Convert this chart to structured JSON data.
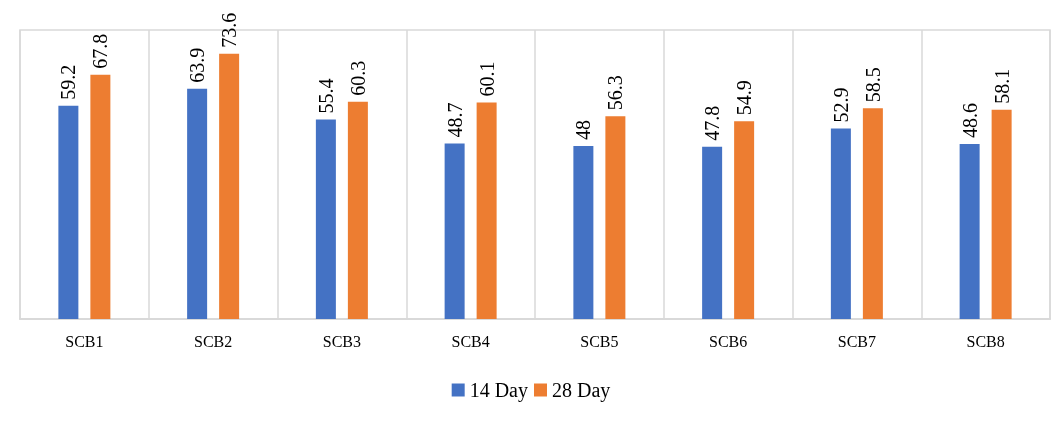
{
  "chart_data": {
    "type": "bar",
    "categories": [
      "SCB1",
      "SCB2",
      "SCB3",
      "SCB4",
      "SCB5",
      "SCB6",
      "SCB7",
      "SCB8"
    ],
    "series": [
      {
        "name": "14 Day",
        "color": "#4472c4",
        "values": [
          59.2,
          63.9,
          55.4,
          48.7,
          48,
          47.8,
          52.9,
          48.6
        ]
      },
      {
        "name": "28 Day",
        "color": "#ed7d31",
        "values": [
          67.8,
          73.6,
          60.3,
          60.1,
          56.3,
          54.9,
          58.5,
          58.1
        ]
      }
    ],
    "data_labels": true,
    "grid": "x",
    "legend": "bottom"
  }
}
